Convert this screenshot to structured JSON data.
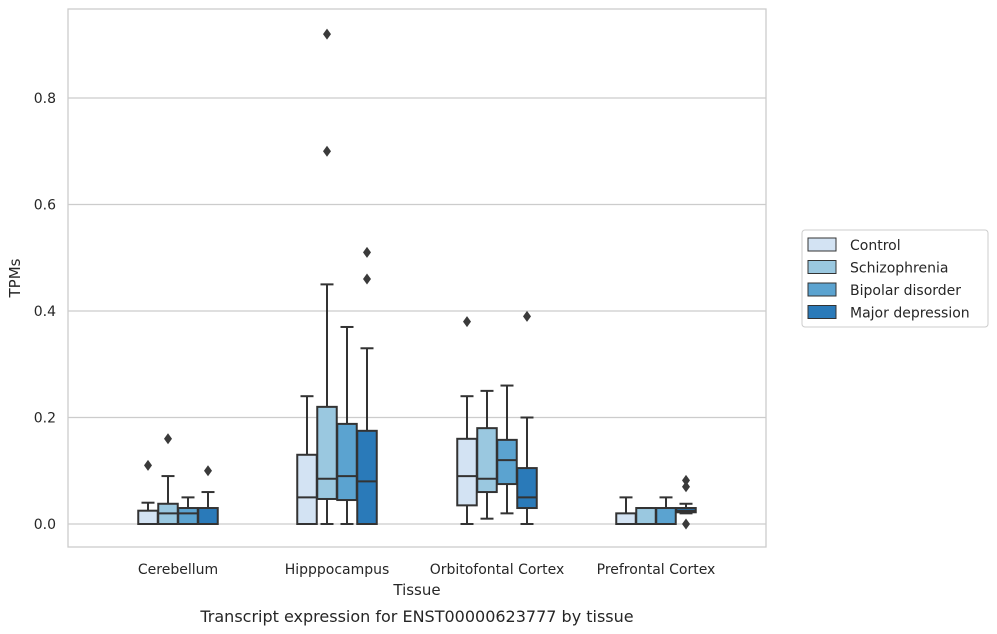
{
  "caption": "Transcript expression for ENST00000623777 by tissue",
  "colors": {
    "Control": "#d3e3f3",
    "Schizophrenia": "#9ac8e0",
    "Bipolar disorder": "#5ba3d0",
    "Major depression": "#2a7ab9",
    "edge": "#333333",
    "grid": "#cccccc",
    "frame": "#cccccc"
  },
  "chart_data": {
    "type": "box",
    "title": "",
    "xlabel": "Tissue",
    "ylabel": "TPMs",
    "ylim": [
      -0.045,
      0.97
    ],
    "yticks": [
      0.0,
      0.2,
      0.4,
      0.6,
      0.8
    ],
    "ytick_labels": [
      "0.0",
      "0.2",
      "0.4",
      "0.6",
      "0.8"
    ],
    "grid": "horizontal",
    "legend_position": "right",
    "categories": [
      "Cerebellum",
      "Hipppocampus",
      "Orbitofontal Cortex",
      "Prefrontal Cortex"
    ],
    "series": [
      {
        "name": "Control",
        "boxes": [
          {
            "whislo": 0.0,
            "q1": 0.0,
            "med": 0.0,
            "q3": 0.025,
            "whishi": 0.04,
            "fliers": [
              0.11
            ]
          },
          {
            "whislo": 0.0,
            "q1": 0.0,
            "med": 0.05,
            "q3": 0.13,
            "whishi": 0.24,
            "fliers": []
          },
          {
            "whislo": 0.0,
            "q1": 0.035,
            "med": 0.09,
            "q3": 0.16,
            "whishi": 0.24,
            "fliers": [
              0.38
            ]
          },
          {
            "whislo": 0.0,
            "q1": 0.0,
            "med": 0.0,
            "q3": 0.02,
            "whishi": 0.05,
            "fliers": []
          }
        ]
      },
      {
        "name": "Schizophrenia",
        "boxes": [
          {
            "whislo": 0.0,
            "q1": 0.0,
            "med": 0.02,
            "q3": 0.038,
            "whishi": 0.09,
            "fliers": [
              0.16
            ]
          },
          {
            "whislo": 0.0,
            "q1": 0.047,
            "med": 0.085,
            "q3": 0.22,
            "whishi": 0.45,
            "fliers": [
              0.92,
              0.7
            ]
          },
          {
            "whislo": 0.01,
            "q1": 0.06,
            "med": 0.085,
            "q3": 0.18,
            "whishi": 0.25,
            "fliers": []
          },
          {
            "whislo": 0.0,
            "q1": 0.0,
            "med": 0.0,
            "q3": 0.03,
            "whishi": 0.03,
            "fliers": []
          }
        ]
      },
      {
        "name": "Bipolar disorder",
        "boxes": [
          {
            "whislo": 0.0,
            "q1": 0.0,
            "med": 0.02,
            "q3": 0.03,
            "whishi": 0.05,
            "fliers": []
          },
          {
            "whislo": 0.0,
            "q1": 0.045,
            "med": 0.09,
            "q3": 0.188,
            "whishi": 0.37,
            "fliers": []
          },
          {
            "whislo": 0.02,
            "q1": 0.075,
            "med": 0.12,
            "q3": 0.158,
            "whishi": 0.26,
            "fliers": []
          },
          {
            "whislo": 0.0,
            "q1": 0.0,
            "med": 0.0,
            "q3": 0.03,
            "whishi": 0.05,
            "fliers": []
          }
        ]
      },
      {
        "name": "Major depression",
        "boxes": [
          {
            "whislo": 0.0,
            "q1": 0.0,
            "med": 0.0,
            "q3": 0.03,
            "whishi": 0.06,
            "fliers": [
              0.1
            ]
          },
          {
            "whislo": 0.0,
            "q1": 0.0,
            "med": 0.08,
            "q3": 0.175,
            "whishi": 0.33,
            "fliers": [
              0.51,
              0.46
            ]
          },
          {
            "whislo": 0.0,
            "q1": 0.03,
            "med": 0.05,
            "q3": 0.105,
            "whishi": 0.2,
            "fliers": [
              0.39
            ]
          },
          {
            "whislo": 0.02,
            "q1": 0.022,
            "med": 0.025,
            "q3": 0.03,
            "whishi": 0.038,
            "fliers": [
              0.082,
              0.07,
              0.0
            ]
          }
        ]
      }
    ]
  }
}
